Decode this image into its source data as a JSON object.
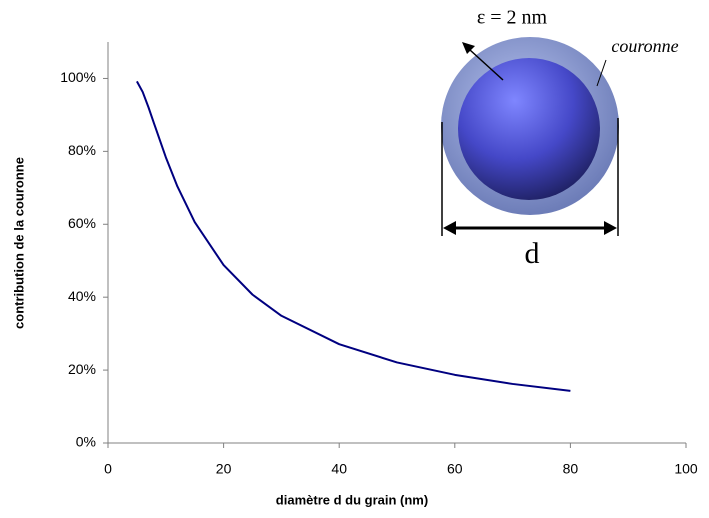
{
  "chart_data": {
    "type": "line",
    "x_label": "diamètre d du grain (nm)",
    "y_label": "contribution de la couronne",
    "x": [
      5,
      6,
      7,
      8,
      10,
      12,
      15,
      20,
      25,
      30,
      40,
      50,
      60,
      70,
      80
    ],
    "values": [
      99.2,
      96.3,
      92.1,
      87.5,
      78.4,
      70.4,
      60.6,
      48.8,
      40.7,
      34.9,
      27.1,
      22.1,
      18.7,
      16.2,
      14.3
    ],
    "color": "#000080",
    "xlim": [
      0,
      100
    ],
    "xticks": [
      0,
      20,
      40,
      60,
      80,
      100
    ],
    "ylim": [
      0,
      110
    ],
    "yticks": [
      {
        "value": 0,
        "label": "0%"
      },
      {
        "value": 20,
        "label": "20%"
      },
      {
        "value": 40,
        "label": "40%"
      },
      {
        "value": 60,
        "label": "60%"
      },
      {
        "value": 80,
        "label": "80%"
      },
      {
        "value": 100,
        "label": "100%"
      }
    ],
    "annotations": [
      "ε = 2 nm",
      "couronne",
      "d"
    ]
  }
}
